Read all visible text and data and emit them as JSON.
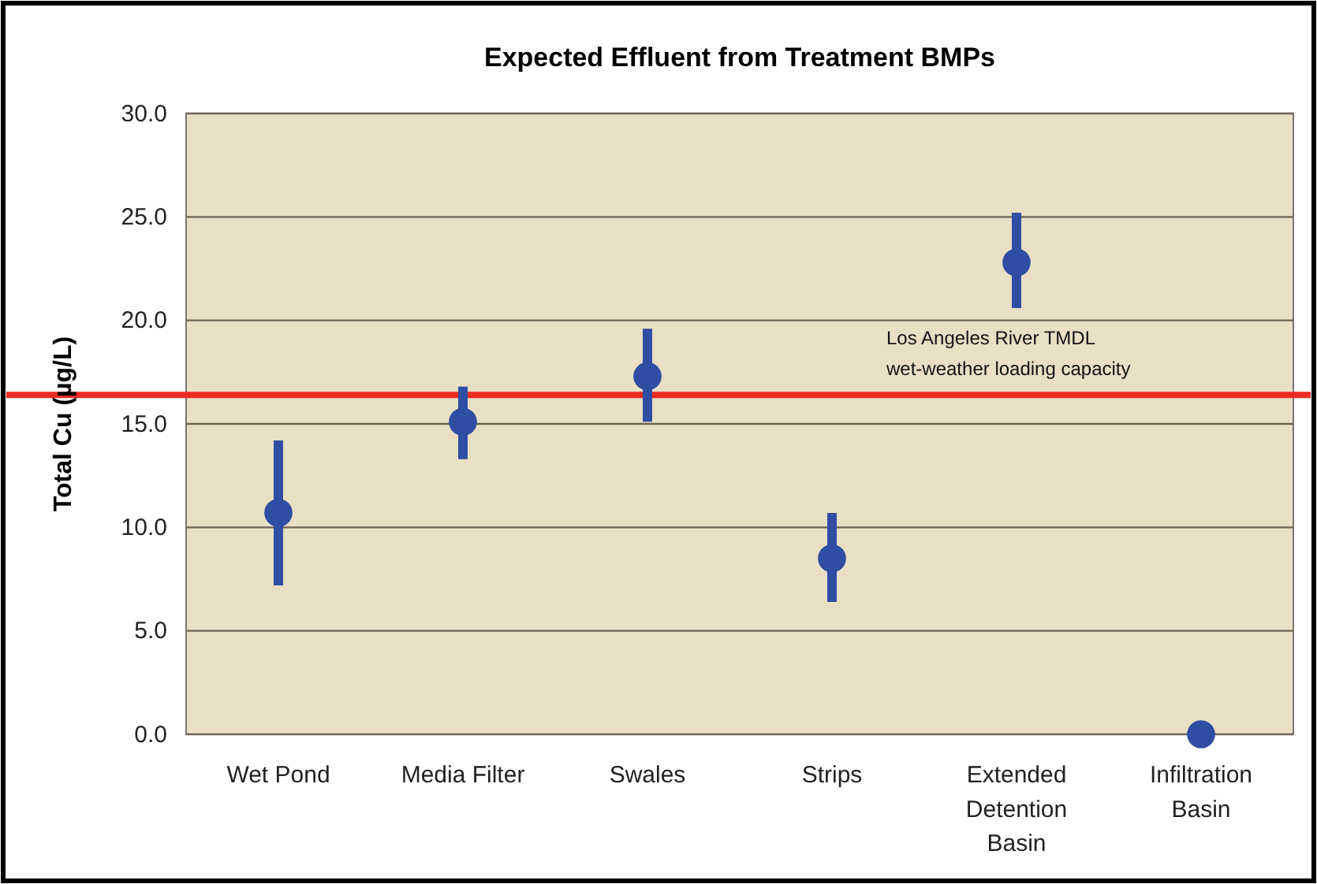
{
  "chart_data": {
    "type": "scatter",
    "title": "Expected Effluent from Treatment BMPs",
    "ylabel": "Total Cu (µg/L)",
    "categories": [
      "Wet Pond",
      "Media Filter",
      "Swales",
      "Strips",
      "Extended Detention Basin",
      "Infiltration Basin"
    ],
    "values": [
      10.7,
      15.1,
      17.3,
      8.5,
      22.8,
      0
    ],
    "errors": [
      [
        7.2,
        14.2
      ],
      [
        13.3,
        16.8
      ],
      [
        15.1,
        19.6
      ],
      [
        6.4,
        10.7
      ],
      [
        20.6,
        25.2
      ],
      null
    ],
    "color": "#2f4ea3",
    "marker": "circle",
    "ylim": [
      0,
      30
    ],
    "yticks": [
      {
        "value": 0,
        "label": "0.0"
      },
      {
        "value": 5,
        "label": "5.0"
      },
      {
        "value": 10,
        "label": "10.0"
      },
      {
        "value": 15,
        "label": "15.0"
      },
      {
        "value": 20,
        "label": "20.0"
      },
      {
        "value": 25,
        "label": "25.0"
      },
      {
        "value": 30,
        "label": "30.0"
      }
    ],
    "grid": "y",
    "ref_lines": [
      {
        "axis": "y",
        "value": 16.4,
        "label": "Los Angeles River TMDL wet-weather loading capacity",
        "color": "#ee2a24"
      }
    ]
  }
}
